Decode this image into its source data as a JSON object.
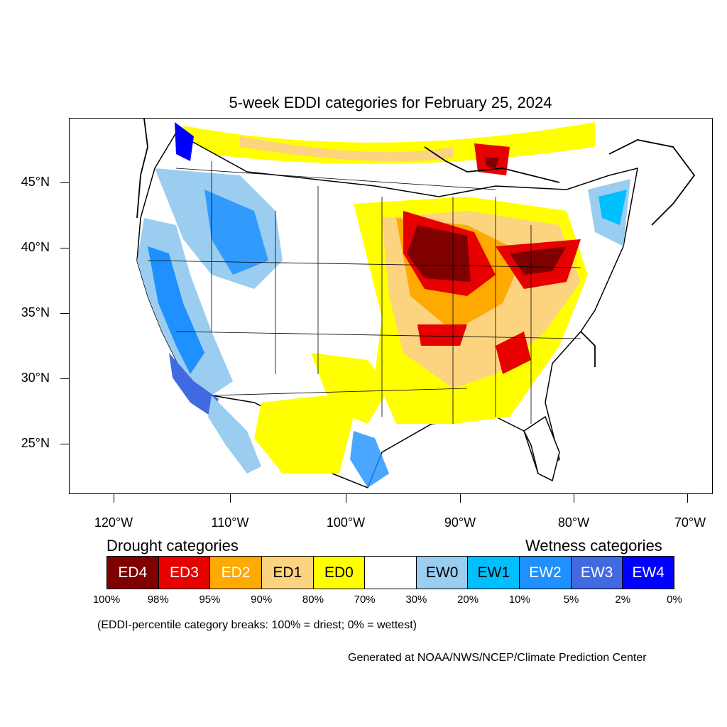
{
  "title": "5-week EDDI categories for February 25, 2024",
  "map": {
    "projection": "conic (CONUS)",
    "lat_labels": [
      "45°N",
      "40°N",
      "35°N",
      "30°N",
      "25°N"
    ],
    "lon_labels": [
      "120°W",
      "110°W",
      "100°W",
      "90°W",
      "80°W",
      "70°W"
    ]
  },
  "legend": {
    "drought_heading": "Drought categories",
    "wetness_heading": "Wetness categories",
    "categories": [
      {
        "label": "ED4",
        "color": "#800000",
        "text_color": "#ffffff"
      },
      {
        "label": "ED3",
        "color": "#e60000",
        "text_color": "#ffffff"
      },
      {
        "label": "ED2",
        "color": "#ffaa00",
        "text_color": "#ffffff"
      },
      {
        "label": "ED1",
        "color": "#fcd37f",
        "text_color": "#000000"
      },
      {
        "label": "ED0",
        "color": "#ffff00",
        "text_color": "#000000"
      },
      {
        "label": "",
        "color": "#ffffff",
        "text_color": "#000000"
      },
      {
        "label": "EW0",
        "color": "#9bcdf0",
        "text_color": "#000000"
      },
      {
        "label": "EW1",
        "color": "#00bfff",
        "text_color": "#000000"
      },
      {
        "label": "EW2",
        "color": "#1e90ff",
        "text_color": "#ffffff"
      },
      {
        "label": "EW3",
        "color": "#4169e1",
        "text_color": "#ffffff"
      },
      {
        "label": "EW4",
        "color": "#0000ff",
        "text_color": "#ffffff"
      }
    ],
    "percentile_breaks": [
      "100%",
      "98%",
      "95%",
      "90%",
      "80%",
      "70%",
      "30%",
      "20%",
      "10%",
      "5%",
      "2%",
      "0%"
    ]
  },
  "note": "(EDDI-percentile category breaks: 100% = driest; 0% = wettest)",
  "credit": "Generated at NOAA/NWS/NCEP/Climate Prediction Center"
}
